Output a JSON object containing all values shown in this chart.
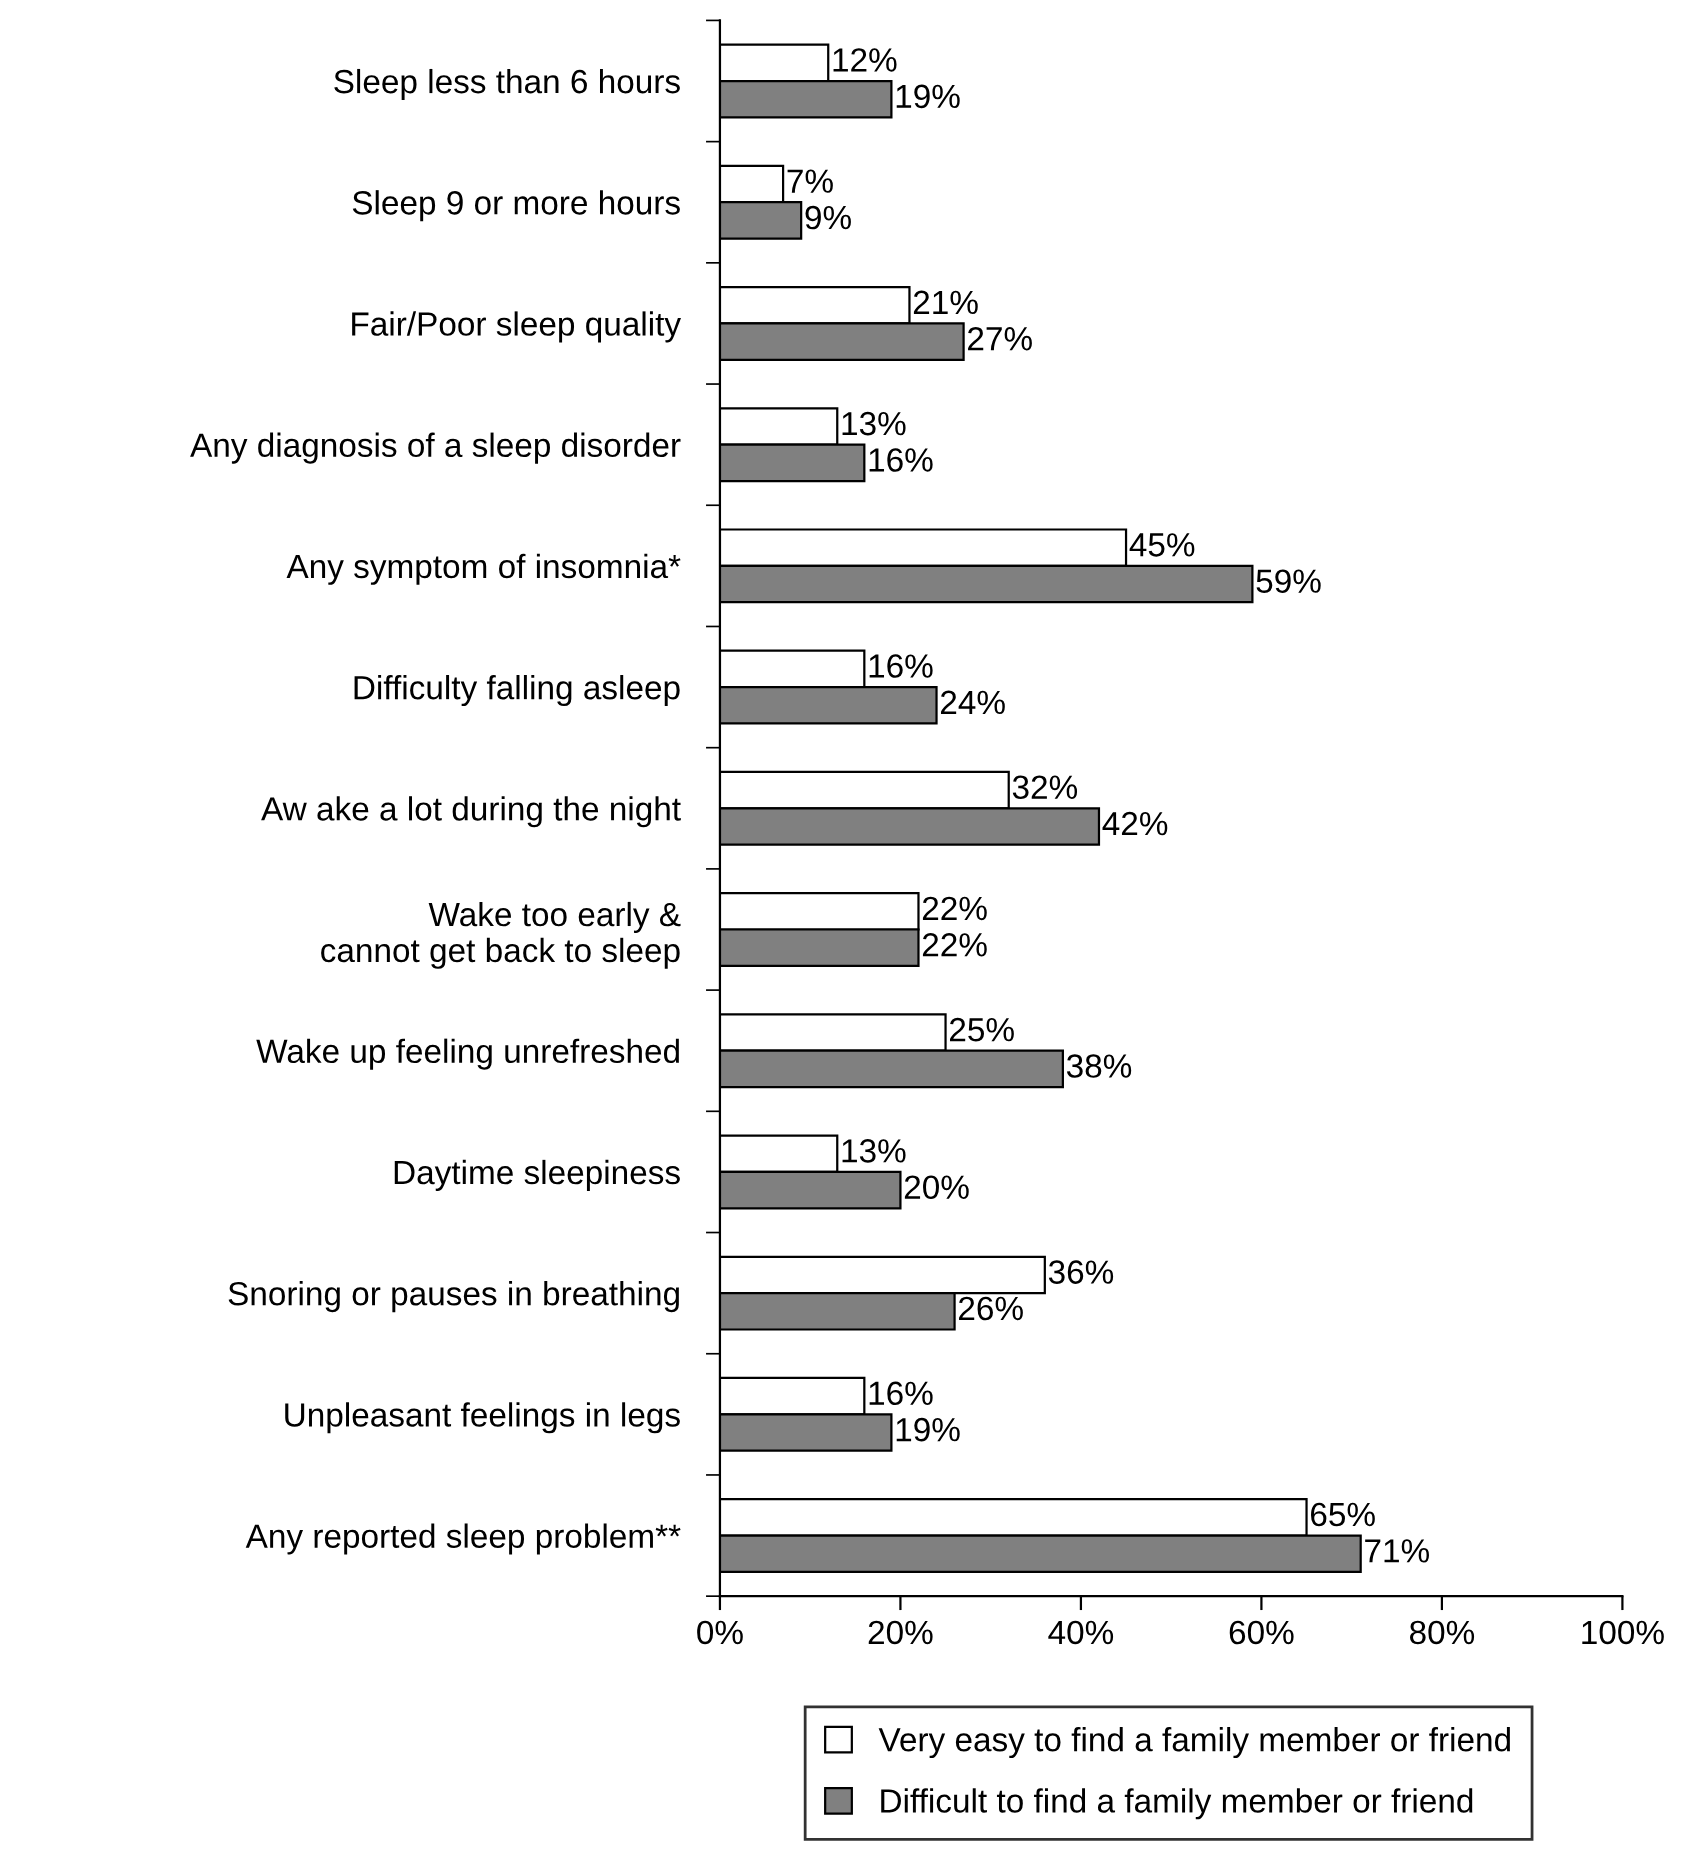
{
  "chart_data": {
    "type": "bar",
    "orientation": "horizontal",
    "categories": [
      "Sleep less than 6 hours",
      "Sleep 9 or more hours",
      "Fair/Poor sleep quality",
      "Any diagnosis of a sleep disorder",
      "Any symptom of insomnia*",
      "Difficulty falling asleep",
      "Aw ake a lot during the night",
      "Wake too early &\ncannot get back to sleep",
      "Wake up feeling unrefreshed",
      "Daytime sleepiness",
      "Snoring or pauses in breathing",
      "Unpleasant feelings in legs",
      "Any reported sleep problem**"
    ],
    "series": [
      {
        "name": "Very easy to find a family member or friend",
        "color": "#ffffff",
        "values": [
          12,
          7,
          21,
          13,
          45,
          16,
          32,
          22,
          25,
          13,
          36,
          16,
          65
        ],
        "value_labels": [
          "12%",
          "7%",
          "21%",
          "13%",
          "45%",
          "16%",
          "32%",
          "22%",
          "25%",
          "13%",
          "36%",
          "16%",
          "65%"
        ]
      },
      {
        "name": "Difficult to find a family member or friend",
        "color": "#808080",
        "values": [
          19,
          9,
          27,
          16,
          59,
          24,
          42,
          22,
          38,
          20,
          26,
          19,
          71
        ],
        "value_labels": [
          "19%",
          "9%",
          "27%",
          "16%",
          "59%",
          "24%",
          "42%",
          "22%",
          "38%",
          "20%",
          "26%",
          "19%",
          "71%"
        ]
      }
    ],
    "xlim": [
      0,
      100
    ],
    "xticks": [
      {
        "value": 0,
        "label": "0%"
      },
      {
        "value": 20,
        "label": "20%"
      },
      {
        "value": 40,
        "label": "40%"
      },
      {
        "value": 60,
        "label": "60%"
      },
      {
        "value": 80,
        "label": "80%"
      },
      {
        "value": 100,
        "label": "100%"
      }
    ],
    "grid": false,
    "legend": "bottom"
  }
}
